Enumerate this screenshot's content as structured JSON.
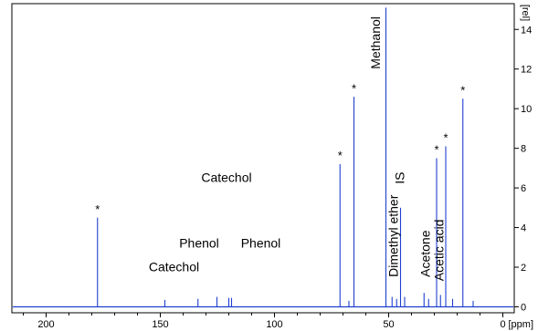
{
  "chart_data": {
    "type": "line",
    "xlabel": "[ppm]",
    "ylabel": "[rel]",
    "xlim": [
      215,
      -5
    ],
    "ylim": [
      -0.3,
      15.3
    ],
    "x_reversed": true,
    "x_ticks": [
      "200",
      "150",
      "100",
      "50",
      "0"
    ],
    "x_tick_values": [
      200,
      150,
      100,
      50,
      0
    ],
    "y_ticks": [
      "0",
      "2",
      "4",
      "6",
      "8",
      "10",
      "12",
      "14"
    ],
    "y_tick_values": [
      0,
      2,
      4,
      6,
      8,
      10,
      12,
      14
    ],
    "line_color": "#1f3fd0",
    "peaks": [
      {
        "x": 177.5,
        "y": 4.5
      },
      {
        "x": 148.0,
        "y": 0.35
      },
      {
        "x": 133.5,
        "y": 0.4
      },
      {
        "x": 125.2,
        "y": 0.5
      },
      {
        "x": 120.0,
        "y": 0.45
      },
      {
        "x": 118.8,
        "y": 0.45
      },
      {
        "x": 71.3,
        "y": 7.2
      },
      {
        "x": 67.4,
        "y": 0.3
      },
      {
        "x": 65.2,
        "y": 10.6
      },
      {
        "x": 51.2,
        "y": 15.1
      },
      {
        "x": 48.5,
        "y": 0.5
      },
      {
        "x": 46.5,
        "y": 0.4
      },
      {
        "x": 44.8,
        "y": 5.0
      },
      {
        "x": 43.0,
        "y": 0.5
      },
      {
        "x": 34.5,
        "y": 0.7
      },
      {
        "x": 32.5,
        "y": 0.4
      },
      {
        "x": 29.0,
        "y": 7.5
      },
      {
        "x": 27.3,
        "y": 0.6
      },
      {
        "x": 25.0,
        "y": 8.1
      },
      {
        "x": 22.0,
        "y": 0.4
      },
      {
        "x": 17.5,
        "y": 10.5
      },
      {
        "x": 13.0,
        "y": 0.3
      }
    ],
    "annotations": [
      {
        "text": "Catechol",
        "x": 144.0,
        "y": 1.8,
        "rotate": false
      },
      {
        "text": "Phenol",
        "x": 133.0,
        "y": 3.0,
        "rotate": false
      },
      {
        "text": "Catechol",
        "x": 121.0,
        "y": 6.3,
        "rotate": false
      },
      {
        "text": "Phenol",
        "x": 106.0,
        "y": 3.0,
        "rotate": false
      },
      {
        "text": "Methanol",
        "x": 53.8,
        "y": 12.0,
        "rotate": true
      },
      {
        "text": "Dimethyl ether",
        "x": 46.0,
        "y": 1.5,
        "rotate": true
      },
      {
        "text": "IS",
        "x": 43.3,
        "y": 6.2,
        "rotate": true
      },
      {
        "text": "Acetone",
        "x": 32.0,
        "y": 1.5,
        "rotate": true
      },
      {
        "text": "Acetic acid",
        "x": 26.0,
        "y": 1.3,
        "rotate": true
      }
    ],
    "stars": [
      {
        "text": "*",
        "x": 177.5,
        "y": 5.0
      },
      {
        "text": "*",
        "x": 71.3,
        "y": 7.7
      },
      {
        "text": "*",
        "x": 65.2,
        "y": 11.1
      },
      {
        "text": "*",
        "x": 29.0,
        "y": 8.0
      },
      {
        "text": "*",
        "x": 25.0,
        "y": 8.6
      },
      {
        "text": "*",
        "x": 17.5,
        "y": 11.0
      }
    ]
  }
}
